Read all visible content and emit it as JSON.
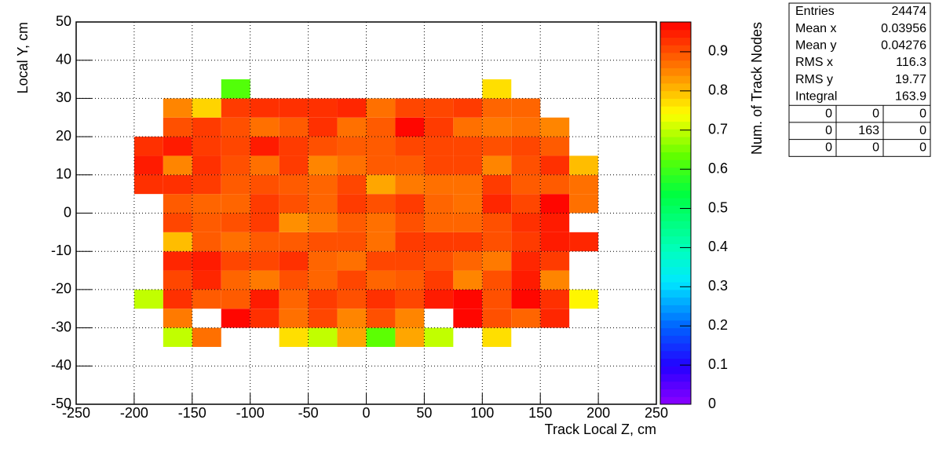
{
  "chart_data": {
    "type": "heatmap",
    "xlabel": "Track Local Z, cm",
    "ylabel": "Local Y, cm",
    "zlabel": "Num. of Track Nodes",
    "xlim": [
      -250,
      250
    ],
    "ylim": [
      -50,
      50
    ],
    "zlim": [
      0,
      0.976
    ],
    "xticks": [
      -250,
      -200,
      -150,
      -100,
      -50,
      0,
      50,
      100,
      150,
      200,
      250
    ],
    "yticks": [
      -50,
      -40,
      -30,
      -20,
      -10,
      0,
      10,
      20,
      30,
      40,
      50
    ],
    "zticks": [
      0,
      0.1,
      0.2,
      0.3,
      0.4,
      0.5,
      0.6,
      0.7,
      0.8,
      0.9
    ],
    "grid": true,
    "colorscale": [
      [
        0,
        "#8c00ff"
      ],
      [
        0.1,
        "#2400ff"
      ],
      [
        0.2,
        "#0060ff"
      ],
      [
        0.32,
        "#00e8ff"
      ],
      [
        0.4,
        "#00ffc0"
      ],
      [
        0.55,
        "#00ff40"
      ],
      [
        0.65,
        "#60ff00"
      ],
      [
        0.76,
        "#ffff00"
      ],
      [
        0.86,
        "#ff9000"
      ],
      [
        1,
        "#ff0000"
      ]
    ],
    "xbins": [
      -200,
      -175,
      -150,
      -125,
      -100,
      -75,
      -50,
      -25,
      0,
      25,
      50,
      75,
      100,
      125,
      150,
      175,
      200
    ],
    "ybins": [
      -35,
      -30,
      -25,
      -20,
      -15,
      -10,
      -5,
      0,
      5,
      10,
      15,
      20,
      25,
      30,
      35
    ],
    "z": [
      [
        null,
        0.7,
        0.87,
        null,
        null,
        0.77,
        0.7,
        0.82,
        0.63,
        0.82,
        0.7,
        null,
        0.77,
        null,
        null,
        null
      ],
      [
        null,
        0.86,
        null,
        0.97,
        0.93,
        0.87,
        0.91,
        0.85,
        0.9,
        0.85,
        null,
        0.97,
        0.9,
        0.88,
        0.94,
        null
      ],
      [
        0.7,
        0.93,
        0.89,
        0.89,
        0.95,
        0.88,
        0.92,
        0.9,
        0.93,
        0.91,
        0.95,
        0.97,
        0.9,
        0.97,
        0.93,
        0.75
      ],
      [
        null,
        0.91,
        0.94,
        0.88,
        0.86,
        0.9,
        0.88,
        0.91,
        0.88,
        0.89,
        0.92,
        0.85,
        0.9,
        0.95,
        0.85,
        null
      ],
      [
        null,
        0.94,
        0.95,
        0.91,
        0.91,
        0.93,
        0.88,
        0.87,
        0.91,
        0.91,
        0.9,
        0.88,
        0.86,
        0.94,
        0.92,
        null
      ],
      [
        null,
        0.8,
        0.89,
        0.87,
        0.89,
        0.89,
        0.9,
        0.9,
        0.87,
        0.92,
        0.92,
        0.92,
        0.9,
        0.92,
        0.95,
        0.94
      ],
      [
        null,
        0.91,
        0.89,
        0.9,
        0.92,
        0.84,
        0.86,
        0.89,
        0.87,
        0.9,
        0.88,
        0.88,
        0.9,
        0.93,
        0.95,
        null
      ],
      [
        null,
        0.89,
        0.88,
        0.88,
        0.92,
        0.9,
        0.88,
        0.92,
        0.9,
        0.92,
        0.88,
        0.87,
        0.94,
        0.91,
        0.97,
        0.87
      ],
      [
        0.93,
        0.93,
        0.92,
        0.89,
        0.9,
        0.89,
        0.88,
        0.91,
        0.82,
        0.86,
        0.87,
        0.87,
        0.92,
        0.89,
        0.89,
        0.87
      ],
      [
        0.95,
        0.85,
        0.93,
        0.9,
        0.87,
        0.92,
        0.85,
        0.87,
        0.89,
        0.89,
        0.91,
        0.91,
        0.85,
        0.9,
        0.93,
        0.8
      ],
      [
        0.93,
        0.95,
        0.92,
        0.91,
        0.95,
        0.92,
        0.9,
        0.89,
        0.89,
        0.91,
        0.91,
        0.91,
        0.9,
        0.91,
        0.89,
        null
      ],
      [
        null,
        0.9,
        0.92,
        0.9,
        0.87,
        0.89,
        0.93,
        0.87,
        0.89,
        0.97,
        0.92,
        0.87,
        0.86,
        0.87,
        0.85,
        null
      ],
      [
        null,
        0.85,
        0.78,
        0.92,
        0.93,
        0.93,
        0.93,
        0.94,
        0.87,
        0.91,
        0.91,
        0.92,
        0.88,
        0.88,
        null,
        null
      ],
      [
        null,
        null,
        null,
        0.62,
        null,
        null,
        null,
        null,
        null,
        null,
        null,
        null,
        0.77,
        null,
        null,
        null
      ]
    ],
    "stats": {
      "rows": [
        {
          "label": "Entries",
          "value": 24474
        },
        {
          "label": "Mean x",
          "value": 0.03956
        },
        {
          "label": "Mean y",
          "value": 0.04276
        },
        {
          "label": "RMS x",
          "value": 116.3
        },
        {
          "label": "RMS y",
          "value": 19.77
        },
        {
          "label": "Integral",
          "value": 163.9
        }
      ],
      "grid": [
        [
          0,
          0,
          0
        ],
        [
          0,
          163,
          0
        ],
        [
          0,
          0,
          0
        ]
      ]
    }
  }
}
